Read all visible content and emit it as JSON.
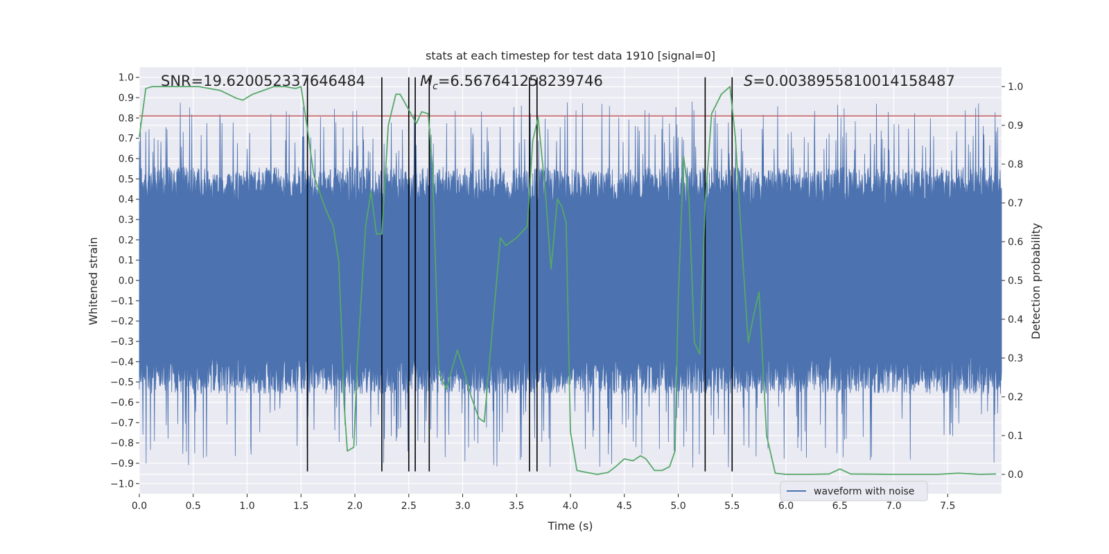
{
  "chart_data": {
    "type": "line",
    "title": "stats at each timestep for test data 1910 [signal=0]",
    "xlabel": "Time (s)",
    "ylabel": "Whitened strain",
    "y2label": "Detection probability",
    "xlim": [
      0.0,
      8.0
    ],
    "ylim": [
      -1.05,
      1.05
    ],
    "y2lim": [
      -0.05,
      1.05
    ],
    "xticks": [
      0.0,
      0.5,
      1.0,
      1.5,
      2.0,
      2.5,
      3.0,
      3.5,
      4.0,
      4.5,
      5.0,
      5.5,
      6.0,
      6.5,
      7.0,
      7.5
    ],
    "xtick_labels": [
      "0.0",
      "0.5",
      "1.0",
      "1.5",
      "2.0",
      "2.5",
      "3.0",
      "3.5",
      "4.0",
      "4.5",
      "5.0",
      "5.5",
      "6.0",
      "6.5",
      "7.0",
      "7.5"
    ],
    "yticks": [
      1.0,
      0.9,
      0.8,
      0.7,
      0.6,
      0.5,
      0.4,
      0.3,
      0.2,
      0.1,
      0.0,
      -0.1,
      -0.2,
      -0.3,
      -0.4,
      -0.5,
      -0.6,
      -0.7,
      -0.8,
      -0.9,
      -1.0
    ],
    "ytick_labels": [
      "1.0",
      "0.9",
      "0.8",
      "0.7",
      "0.6",
      "0.5",
      "0.4",
      "0.3",
      "0.2",
      "0.1",
      "0.0",
      "−0.1",
      "−0.2",
      "−0.3",
      "−0.4",
      "−0.5",
      "−0.6",
      "−0.7",
      "−0.8",
      "−0.9",
      "−1.0"
    ],
    "y2ticks": [
      1.0,
      0.9,
      0.8,
      0.7,
      0.6,
      0.5,
      0.4,
      0.3,
      0.2,
      0.1,
      0.0
    ],
    "y2tick_labels": [
      "1.0",
      "0.9",
      "0.8",
      "0.7",
      "0.6",
      "0.5",
      "0.4",
      "0.3",
      "0.2",
      "0.1",
      "0.0"
    ],
    "grid": true,
    "annotations": {
      "snr": "SNR=19.620052337646484",
      "mc_symbol": "M",
      "mc_sub": "c",
      "mc_value": "=6.567641258239746",
      "s_symbol": "S",
      "s_value": "=0.0038955810014158487"
    },
    "legend": {
      "placement": "lower-right",
      "entries": [
        "waveform with noise"
      ]
    },
    "colors": {
      "waveform": "#4c72b0",
      "probability": "#55a868",
      "threshold": "#c44e52",
      "markers": "#000000",
      "plot_bg": "#eaeaf2",
      "grid": "#ffffff"
    },
    "waveform": {
      "name": "waveform with noise",
      "duration": 8.0,
      "core_envelope": 0.37,
      "typical_peak": 0.62,
      "max_abs": 1.0
    },
    "threshold_y": 0.81,
    "vertical_markers": [
      {
        "x": 1.56,
        "y_top": 1.0,
        "y_bottom": -0.94
      },
      {
        "x": 2.25,
        "y_top": 1.0,
        "y_bottom": -0.94
      },
      {
        "x": 2.5,
        "y_top": 1.0,
        "y_bottom": -0.94
      },
      {
        "x": 2.56,
        "y_top": 1.0,
        "y_bottom": -0.94
      },
      {
        "x": 2.69,
        "y_top": 1.0,
        "y_bottom": -0.94
      },
      {
        "x": 3.62,
        "y_top": 1.0,
        "y_bottom": -0.94
      },
      {
        "x": 3.69,
        "y_top": 1.0,
        "y_bottom": -0.94
      },
      {
        "x": 5.25,
        "y_top": 1.0,
        "y_bottom": -0.94
      },
      {
        "x": 5.5,
        "y_top": 1.0,
        "y_bottom": -0.94
      }
    ],
    "probability_series": {
      "name": "Detection probability",
      "points": [
        [
          0.0,
          0.87
        ],
        [
          0.06,
          0.995
        ],
        [
          0.12,
          1.0
        ],
        [
          0.3,
          1.0
        ],
        [
          0.55,
          1.0
        ],
        [
          0.75,
          0.99
        ],
        [
          0.9,
          0.97
        ],
        [
          0.96,
          0.965
        ],
        [
          1.05,
          0.98
        ],
        [
          1.15,
          0.99
        ],
        [
          1.25,
          1.0
        ],
        [
          1.35,
          1.0
        ],
        [
          1.45,
          0.995
        ],
        [
          1.5,
          1.0
        ],
        [
          1.56,
          0.89
        ],
        [
          1.62,
          0.77
        ],
        [
          1.72,
          0.69
        ],
        [
          1.75,
          0.67
        ],
        [
          1.8,
          0.64
        ],
        [
          1.85,
          0.55
        ],
        [
          1.88,
          0.35
        ],
        [
          1.9,
          0.18
        ],
        [
          1.93,
          0.06
        ],
        [
          1.99,
          0.07
        ],
        [
          2.02,
          0.28
        ],
        [
          2.1,
          0.64
        ],
        [
          2.15,
          0.73
        ],
        [
          2.2,
          0.62
        ],
        [
          2.25,
          0.62
        ],
        [
          2.31,
          0.9
        ],
        [
          2.38,
          0.98
        ],
        [
          2.42,
          0.98
        ],
        [
          2.5,
          0.94
        ],
        [
          2.57,
          0.905
        ],
        [
          2.62,
          0.935
        ],
        [
          2.68,
          0.93
        ],
        [
          2.72,
          0.79
        ],
        [
          2.78,
          0.26
        ],
        [
          2.85,
          0.22
        ],
        [
          2.95,
          0.32
        ],
        [
          3.0,
          0.28
        ],
        [
          3.08,
          0.2
        ],
        [
          3.15,
          0.145
        ],
        [
          3.2,
          0.135
        ],
        [
          3.3,
          0.45
        ],
        [
          3.35,
          0.61
        ],
        [
          3.4,
          0.59
        ],
        [
          3.5,
          0.61
        ],
        [
          3.6,
          0.64
        ],
        [
          3.65,
          0.86
        ],
        [
          3.7,
          0.92
        ],
        [
          3.77,
          0.72
        ],
        [
          3.82,
          0.53
        ],
        [
          3.88,
          0.71
        ],
        [
          3.92,
          0.69
        ],
        [
          3.96,
          0.65
        ],
        [
          4.0,
          0.11
        ],
        [
          4.06,
          0.01
        ],
        [
          4.15,
          0.005
        ],
        [
          4.25,
          0.0
        ],
        [
          4.35,
          0.005
        ],
        [
          4.42,
          0.02
        ],
        [
          4.5,
          0.04
        ],
        [
          4.58,
          0.035
        ],
        [
          4.65,
          0.048
        ],
        [
          4.7,
          0.04
        ],
        [
          4.78,
          0.01
        ],
        [
          4.85,
          0.01
        ],
        [
          4.92,
          0.02
        ],
        [
          4.97,
          0.06
        ],
        [
          5.0,
          0.45
        ],
        [
          5.05,
          0.82
        ],
        [
          5.1,
          0.71
        ],
        [
          5.15,
          0.34
        ],
        [
          5.2,
          0.31
        ],
        [
          5.25,
          0.7
        ],
        [
          5.31,
          0.93
        ],
        [
          5.4,
          0.98
        ],
        [
          5.48,
          1.0
        ],
        [
          5.53,
          0.87
        ],
        [
          5.6,
          0.55
        ],
        [
          5.65,
          0.34
        ],
        [
          5.7,
          0.41
        ],
        [
          5.75,
          0.47
        ],
        [
          5.82,
          0.1
        ],
        [
          5.9,
          0.003
        ],
        [
          6.0,
          0.0
        ],
        [
          6.2,
          0.0
        ],
        [
          6.4,
          0.001
        ],
        [
          6.5,
          0.014
        ],
        [
          6.6,
          0.001
        ],
        [
          7.0,
          0.0
        ],
        [
          7.4,
          0.0
        ],
        [
          7.6,
          0.003
        ],
        [
          7.8,
          0.0
        ],
        [
          7.95,
          0.001
        ]
      ]
    }
  }
}
